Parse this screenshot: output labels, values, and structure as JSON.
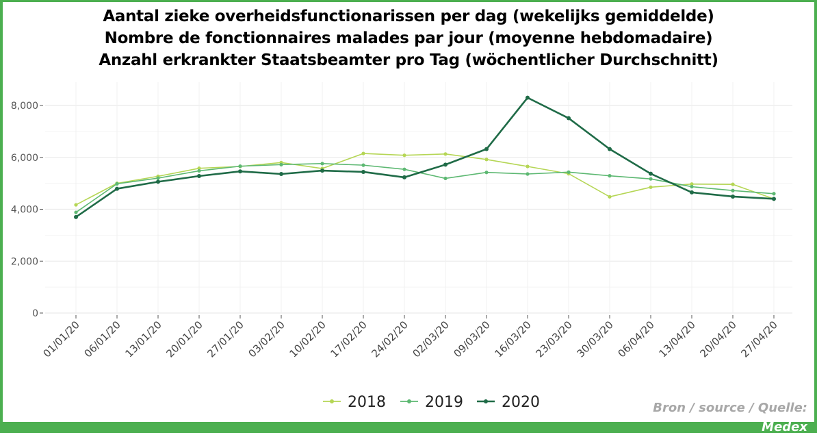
{
  "title_lines": [
    "Aantal zieke overheidsfunctionarissen per dag (wekelijks gemiddelde)",
    "Nombre de fonctionnaires malades par jour (moyenne hebdomadaire)",
    "Anzahl erkrankter Staatsbeamter pro Tag (wöchentlicher Durchschnitt)"
  ],
  "source_line1": "Bron / source / Quelle:",
  "source_line2": "Medex",
  "colors": {
    "frame": "#4caf50",
    "s2018": "#b5d655",
    "s2019": "#5db872",
    "s2020": "#1f6b47"
  },
  "chart_data": {
    "type": "line",
    "categories": [
      "01/01/20",
      "06/01/20",
      "13/01/20",
      "20/01/20",
      "27/01/20",
      "03/02/20",
      "10/02/20",
      "17/02/20",
      "24/02/20",
      "02/03/20",
      "09/03/20",
      "16/03/20",
      "23/03/20",
      "30/03/20",
      "06/04/20",
      "13/04/20",
      "20/04/20",
      "27/04/20"
    ],
    "series": [
      {
        "name": "2018",
        "values": [
          4170,
          5000,
          5270,
          5580,
          5650,
          5800,
          5570,
          6150,
          6080,
          6130,
          5920,
          5650,
          5370,
          4480,
          4850,
          4970,
          4960,
          4400
        ]
      },
      {
        "name": "2019",
        "values": [
          3880,
          4980,
          5200,
          5480,
          5660,
          5720,
          5760,
          5700,
          5540,
          5190,
          5420,
          5360,
          5430,
          5290,
          5170,
          4870,
          4720,
          4600
        ]
      },
      {
        "name": "2020",
        "values": [
          3700,
          4790,
          5060,
          5280,
          5460,
          5360,
          5490,
          5440,
          5230,
          5720,
          6320,
          8300,
          7510,
          6320,
          5370,
          4650,
          4490,
          4400
        ]
      }
    ],
    "ylim": [
      0,
      8600
    ],
    "yticks": [
      0,
      2000,
      4000,
      6000,
      8000
    ],
    "ytick_labels": [
      "0",
      "2,000",
      "4,000",
      "6,000",
      "8,000"
    ],
    "grid": true,
    "legend_position": "bottom"
  }
}
